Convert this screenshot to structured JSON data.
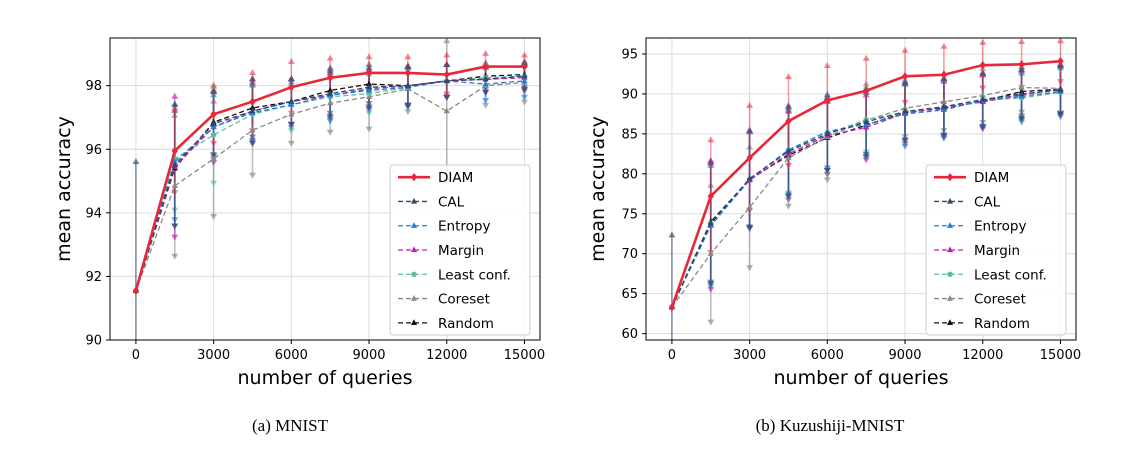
{
  "chart_data": [
    {
      "type": "line",
      "caption": "(a) MNIST",
      "xlabel": "number of queries",
      "ylabel": "mean accuracy",
      "xlim": [
        -1000,
        15600
      ],
      "ylim": [
        90,
        99.5
      ],
      "xticks": [
        0,
        3000,
        6000,
        9000,
        12000,
        15000
      ],
      "yticks": [
        90,
        92,
        94,
        96,
        98
      ],
      "grid": true,
      "legend_position": "lower-right",
      "x": [
        0,
        1500,
        3000,
        4500,
        6000,
        7500,
        9000,
        10500,
        12000,
        13500,
        15000
      ],
      "series": [
        {
          "name": "DIAM",
          "color": "#e8283a",
          "style": "solid",
          "marker": "diamond",
          "values": [
            91.55,
            95.95,
            97.1,
            97.5,
            97.95,
            98.25,
            98.4,
            98.4,
            98.35,
            98.6,
            98.6
          ],
          "err": [
            0,
            1.3,
            0.9,
            0.9,
            0.8,
            0.6,
            0.5,
            0.5,
            0.6,
            0.4,
            0.35
          ]
        },
        {
          "name": "CAL",
          "color": "#2b4a66",
          "style": "dashed",
          "marker": "triangle",
          "values": [
            91.55,
            95.5,
            96.8,
            97.2,
            97.5,
            97.75,
            97.95,
            98.0,
            98.15,
            98.2,
            98.3
          ],
          "err": [
            4.05,
            1.9,
            1.0,
            1.0,
            0.7,
            0.7,
            0.6,
            0.6,
            0.5,
            0.4,
            0.4
          ]
        },
        {
          "name": "Entropy",
          "color": "#1f7fe0",
          "style": "dashed",
          "marker": "triangle",
          "values": [
            91.55,
            95.6,
            96.7,
            97.15,
            97.4,
            97.7,
            97.85,
            97.95,
            98.15,
            98.05,
            98.15
          ],
          "err": [
            0,
            1.8,
            1.0,
            0.9,
            0.7,
            0.8,
            0.6,
            0.6,
            0.5,
            0.5,
            0.5
          ]
        },
        {
          "name": "Margin",
          "color": "#c21fb0",
          "style": "dashed",
          "marker": "triangle",
          "values": [
            91.55,
            95.45,
            96.7,
            97.2,
            97.5,
            97.7,
            97.9,
            98.0,
            98.15,
            98.2,
            98.25
          ],
          "err": [
            0,
            2.2,
            1.1,
            0.9,
            0.7,
            0.7,
            0.6,
            0.6,
            0.5,
            0.4,
            0.4
          ]
        },
        {
          "name": "Least conf.",
          "color": "#5fbe97",
          "style": "dashed",
          "marker": "circle",
          "values": [
            91.55,
            95.7,
            96.45,
            97.1,
            97.4,
            97.65,
            97.75,
            97.95,
            98.15,
            98.25,
            98.3
          ],
          "err": [
            0,
            1.6,
            1.5,
            0.9,
            0.8,
            0.7,
            0.6,
            0.6,
            0.5,
            0.4,
            0.4
          ]
        },
        {
          "name": "Coreset",
          "color": "#888888",
          "style": "dashed",
          "marker": "triangle",
          "values": [
            91.55,
            94.85,
            95.7,
            96.6,
            97.1,
            97.45,
            97.65,
            97.9,
            97.2,
            98.0,
            98.1
          ],
          "err": [
            0,
            2.2,
            1.8,
            1.4,
            0.9,
            0.9,
            1.0,
            0.7,
            2.2,
            0.6,
            0.6
          ]
        },
        {
          "name": "Random",
          "color": "#111111",
          "style": "dashed",
          "marker": "triangle",
          "values": [
            91.55,
            95.4,
            96.85,
            97.3,
            97.5,
            97.85,
            98.05,
            98.0,
            98.15,
            98.3,
            98.35
          ],
          "err": [
            0,
            1.8,
            1.0,
            0.9,
            0.7,
            0.7,
            0.6,
            0.6,
            0.5,
            0.4,
            0.4
          ]
        }
      ]
    },
    {
      "type": "line",
      "caption": "(b) Kuzushiji-MNIST",
      "xlabel": "number of queries",
      "ylabel": "mean accuracy",
      "xlim": [
        -1000,
        15600
      ],
      "ylim": [
        59.2,
        97
      ],
      "xticks": [
        0,
        3000,
        6000,
        9000,
        12000,
        15000
      ],
      "yticks": [
        60,
        65,
        70,
        75,
        80,
        85,
        90,
        95
      ],
      "grid": true,
      "legend_position": "lower-right",
      "x": [
        0,
        1500,
        3000,
        4500,
        6000,
        7500,
        9000,
        10500,
        12000,
        13500,
        15000
      ],
      "series": [
        {
          "name": "DIAM",
          "color": "#e8283a",
          "style": "solid",
          "marker": "diamond",
          "values": [
            63.3,
            77.2,
            82.0,
            86.6,
            89.2,
            90.4,
            92.2,
            92.4,
            93.6,
            93.7,
            94.1
          ],
          "err": [
            0,
            7.0,
            6.5,
            5.5,
            4.3,
            4.0,
            3.2,
            3.5,
            2.8,
            2.8,
            2.5
          ]
        },
        {
          "name": "CAL",
          "color": "#2b4a66",
          "style": "dashed",
          "marker": "triangle",
          "values": [
            63.3,
            73.8,
            79.4,
            82.8,
            85.0,
            86.5,
            87.8,
            88.4,
            89.3,
            90.0,
            90.5
          ],
          "err": [
            9.0,
            7.5,
            6.0,
            5.5,
            4.5,
            4.0,
            3.5,
            3.5,
            3.3,
            3.0,
            3.0
          ]
        },
        {
          "name": "Entropy",
          "color": "#1f7fe0",
          "style": "dashed",
          "marker": "triangle",
          "values": [
            63.3,
            73.5,
            79.3,
            83.0,
            85.3,
            86.2,
            87.5,
            88.0,
            89.2,
            89.7,
            90.3
          ],
          "err": [
            0,
            7.5,
            6.0,
            5.5,
            4.5,
            4.0,
            4.0,
            3.5,
            3.3,
            3.0,
            3.0
          ]
        },
        {
          "name": "Margin",
          "color": "#c21fb0",
          "style": "dashed",
          "marker": "triangle",
          "values": [
            63.3,
            73.6,
            79.2,
            82.5,
            84.8,
            85.8,
            87.6,
            88.3,
            89.0,
            89.9,
            90.6
          ],
          "err": [
            0,
            8.0,
            6.0,
            5.3,
            4.3,
            4.0,
            3.8,
            3.5,
            3.3,
            3.0,
            3.0
          ]
        },
        {
          "name": "Least conf.",
          "color": "#5fbe97",
          "style": "dashed",
          "marker": "circle",
          "values": [
            63.3,
            73.8,
            79.3,
            83.0,
            85.0,
            86.8,
            87.6,
            88.4,
            89.2,
            89.5,
            90.2
          ],
          "err": [
            0,
            7.5,
            6.0,
            5.3,
            4.5,
            4.0,
            3.5,
            3.5,
            3.3,
            3.0,
            3.0
          ]
        },
        {
          "name": "Coreset",
          "color": "#888888",
          "style": "dashed",
          "marker": "triangle",
          "values": [
            63.3,
            70.0,
            75.8,
            82.0,
            84.6,
            86.7,
            88.2,
            89.0,
            89.8,
            90.8,
            90.7
          ],
          "err": [
            0,
            8.5,
            7.5,
            6.0,
            5.3,
            4.5,
            3.5,
            3.5,
            3.3,
            3.0,
            3.0
          ]
        },
        {
          "name": "Random",
          "color": "#111111",
          "style": "dashed",
          "marker": "triangle",
          "values": [
            63.3,
            74.0,
            79.3,
            82.3,
            84.5,
            86.1,
            87.7,
            88.2,
            89.1,
            90.3,
            90.6
          ],
          "err": [
            0,
            7.5,
            6.0,
            5.5,
            4.5,
            4.0,
            3.5,
            3.5,
            3.3,
            3.0,
            3.0
          ]
        }
      ]
    }
  ]
}
